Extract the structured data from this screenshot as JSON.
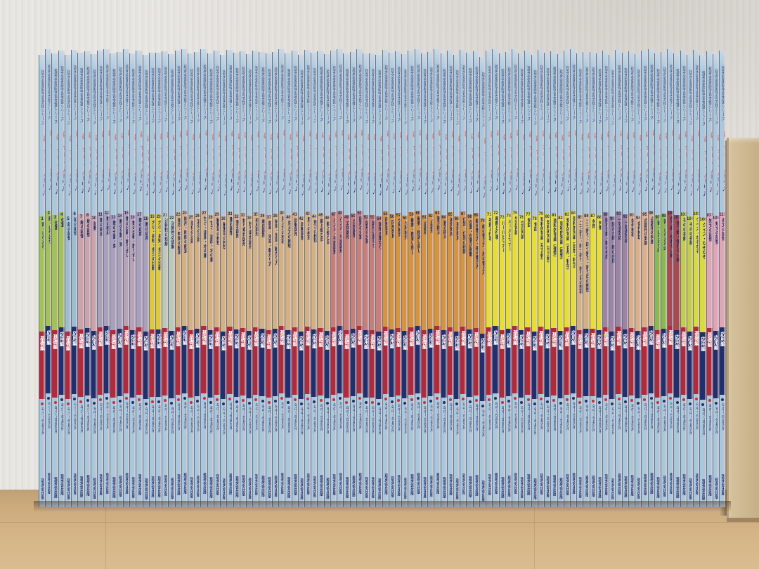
{
  "scene": {
    "wall_color": "#e6e4e0",
    "floor_color": "#cfae80",
    "box_color": "#d0bc95"
  },
  "spine": {
    "series_label": "理英会家庭学習支援シリーズ",
    "logo_main": "ばっちりくん",
    "logo_sub": "ドリル",
    "publisher": "理英会出版",
    "base_color": "#a9c8dc",
    "logo_red": "#c4232b",
    "logo_navy": "#28337a",
    "title_text_color": "#232b60"
  },
  "edition_labels": {
    "kiso": "基礎編",
    "oyo": "応用編"
  },
  "edition_colors": {
    "kiso": "#b12a3c",
    "oyo": "#20306e"
  },
  "dot_colors": {
    "kiso": "#c23040",
    "oyo": "#20306e"
  },
  "audience_labels": {
    "sho": "年少～年長児用",
    "chu": "年中～年長児用"
  },
  "section_colors": {
    "green": "#a2c258",
    "blue": "#9cbed1",
    "pink": "#cba3ab",
    "lavender": "#a7a1bb",
    "pinklav": "#b7a3b7",
    "yellow": "#ddc93c",
    "palegreen": "#bac9b8",
    "tan": "#d2b183",
    "rose": "#c5807a",
    "orange": "#d59440",
    "byellow": "#e4de35",
    "mauve": "#9a86a4",
    "peach": "#d7af88",
    "green2": "#8aba4d",
    "maroon": "#a74a52",
    "ygreen": "#c2ce4a",
    "ygreen2": "#d7db3d",
    "pink2": "#dfa7b5"
  },
  "volumes": [
    [
      1,
      "音・しりとり",
      "green",
      "kiso",
      "sho"
    ],
    [
      2,
      "音・しりとり",
      "green",
      "oyo",
      "sho"
    ],
    [
      3,
      "位置",
      "green",
      "kiso",
      "sho"
    ],
    [
      4,
      "位置",
      "green",
      "oyo",
      "sho"
    ],
    [
      5,
      "話の記憶",
      "blue",
      "kiso",
      "sho"
    ],
    [
      6,
      "話の記憶",
      "blue",
      "oyo",
      "sho"
    ],
    [
      7,
      "絵の記憶",
      "pink",
      "kiso",
      "sho"
    ],
    [
      8,
      "絵の記憶",
      "pink",
      "oyo",
      "sho"
    ],
    [
      10,
      "計数",
      "pink",
      "oyo",
      "chu"
    ],
    [
      11,
      "数の構成",
      "lavender",
      "kiso",
      "chu"
    ],
    [
      12,
      "数の構成",
      "lavender",
      "oyo",
      "chu"
    ],
    [
      13,
      "数の分割・束",
      "lavender",
      "kiso",
      "chu"
    ],
    [
      14,
      "数の分割・束",
      "lavender",
      "oyo",
      "chu"
    ],
    [
      15,
      "数の比較・釣り合い",
      "pinklav",
      "kiso",
      "chu"
    ],
    [
      16,
      "数の比較・釣り合い",
      "pinklav",
      "oyo",
      "chu"
    ],
    [
      17,
      "数の応用",
      "lavender",
      "kiso",
      "chu"
    ],
    [
      18,
      "数の応用",
      "lavender",
      "oyo",
      "chu"
    ],
    [
      19,
      "大小・長短・多少の比較",
      "yellow",
      "kiso",
      "chu"
    ],
    [
      20,
      "大小・長短・多少の比較",
      "yellow",
      "oyo",
      "chu"
    ],
    [
      21,
      "法則性の理解",
      "palegreen",
      "kiso",
      "chu"
    ],
    [
      22,
      "法則性の理解",
      "palegreen",
      "oyo",
      "chu"
    ],
    [
      23,
      "順序・時間の経過",
      "tan",
      "kiso",
      "chu"
    ],
    [
      24,
      "順序・時間の経過",
      "tan",
      "oyo",
      "chu"
    ],
    [
      25,
      "変化の法則",
      "tan",
      "kiso",
      "chu"
    ],
    [
      26,
      "変化の法則",
      "tan",
      "oyo",
      "chu"
    ],
    [
      27,
      "甘さ・濃度・水の量",
      "tan",
      "kiso",
      "chu"
    ],
    [
      28,
      "甘さ・濃度・水の量",
      "tan",
      "oyo",
      "chu"
    ],
    [
      29,
      "観覧車の推理",
      "tan",
      "kiso",
      "chu"
    ],
    [
      30,
      "観覧車の推理",
      "tan",
      "oyo",
      "chu"
    ],
    [
      31,
      "重ね図形",
      "tan",
      "kiso",
      "chu"
    ],
    [
      32,
      "重ね図形",
      "tan",
      "oyo",
      "chu"
    ],
    [
      33,
      "折り重ね図形",
      "tan",
      "kiso",
      "chu"
    ],
    [
      34,
      "折り重ね図形",
      "tan",
      "oyo",
      "chu"
    ],
    [
      35,
      "構成図形",
      "tan",
      "kiso",
      "chu"
    ],
    [
      36,
      "構成図形",
      "tan",
      "oyo",
      "chu"
    ],
    [
      37,
      "歯車・滑車・転がり方",
      "tan",
      "kiso",
      "chu"
    ],
    [
      38,
      "歯車・滑車・転がり方",
      "tan",
      "oyo",
      "chu"
    ],
    [
      39,
      "見え方の推理",
      "tan",
      "kiso",
      "chu"
    ],
    [
      40,
      "見え方の推理",
      "tan",
      "oyo",
      "chu"
    ],
    [
      41,
      "回転図形",
      "tan",
      "kiso",
      "chu"
    ],
    [
      42,
      "回転図形",
      "tan",
      "oyo",
      "chu"
    ],
    [
      43,
      "重さの推理",
      "tan",
      "kiso",
      "chu"
    ],
    [
      44,
      "重さの推理",
      "tan",
      "oyo",
      "chu"
    ],
    [
      45,
      "線と結び目",
      "tan",
      "kiso",
      "chu"
    ],
    [
      46,
      "線と結び目",
      "tan",
      "oyo",
      "chu"
    ],
    [
      47,
      "パズル・平面図形",
      "rose",
      "kiso",
      "chu"
    ],
    [
      48,
      "パズル・平面図形",
      "rose",
      "oyo",
      "chu"
    ],
    [
      49,
      "立体図形",
      "rose",
      "kiso",
      "chu"
    ],
    [
      50,
      "立体図形",
      "rose",
      "oyo",
      "chu"
    ],
    [
      51,
      "図形の分割",
      "rose",
      "kiso",
      "chu"
    ],
    [
      52,
      "図形の分割",
      "rose",
      "oyo",
      "chu"
    ],
    [
      53,
      "図形の重なり",
      "rose",
      "kiso",
      "chu"
    ],
    [
      54,
      "図形の重なり",
      "rose",
      "oyo",
      "chu"
    ],
    [
      55,
      "同形発見",
      "orange",
      "kiso",
      "chu"
    ],
    [
      56,
      "同形発見",
      "orange",
      "oyo",
      "chu"
    ],
    [
      57,
      "欠所補完",
      "orange",
      "kiso",
      "chu"
    ],
    [
      58,
      "欠所補完",
      "orange",
      "oyo",
      "chu"
    ],
    [
      59,
      "観察・間違い探し",
      "orange",
      "kiso",
      "chu"
    ],
    [
      60,
      "観察・間違い探し",
      "orange",
      "oyo",
      "chu"
    ],
    [
      61,
      "点図形",
      "orange",
      "kiso",
      "chu"
    ],
    [
      62,
      "点図形",
      "orange",
      "oyo",
      "chu"
    ],
    [
      63,
      "置き換え",
      "orange",
      "kiso",
      "chu"
    ],
    [
      64,
      "置き換え",
      "orange",
      "oyo",
      "chu"
    ],
    [
      65,
      "系列発見",
      "orange",
      "kiso",
      "chu"
    ],
    [
      66,
      "系列発見",
      "orange",
      "oyo",
      "chu"
    ],
    [
      67,
      "位置・位置の移動",
      "orange",
      "kiso",
      "chu"
    ],
    [
      68,
      "位置・位置の移動",
      "orange",
      "oyo",
      "chu"
    ],
    [
      69,
      "線の書き方・形の書き方",
      "orange",
      "kiso",
      "chu"
    ],
    [
      70,
      "線の書き方・形の書き方",
      "orange",
      "oyo",
      "chu"
    ],
    [
      71,
      "季節と行事",
      "byellow",
      "kiso",
      "chu"
    ],
    [
      72,
      "季節と行事",
      "byellow",
      "oyo",
      "chu"
    ],
    [
      73,
      "ルールとマナー",
      "byellow",
      "kiso",
      "chu"
    ],
    [
      74,
      "ルールとマナー",
      "byellow",
      "oyo",
      "chu"
    ],
    [
      75,
      "生活常識",
      "byellow",
      "kiso",
      "chu"
    ],
    [
      76,
      "生活常識",
      "byellow",
      "oyo",
      "chu"
    ],
    [
      77,
      "昔話",
      "byellow",
      "kiso",
      "chu"
    ],
    [
      78,
      "昔話",
      "byellow",
      "oyo",
      "chu"
    ],
    [
      79,
      "理科的常識〔生き物〕",
      "byellow",
      "kiso",
      "chu"
    ],
    [
      80,
      "理科的常識〔生き物〕",
      "byellow",
      "oyo",
      "chu"
    ],
    [
      81,
      "理科的常識〔植物〕",
      "byellow",
      "kiso",
      "chu"
    ],
    [
      82,
      "理科的常識〔植物〕",
      "byellow",
      "oyo",
      "chu"
    ],
    [
      83,
      "理科的常識〔自然・科学〕",
      "byellow",
      "kiso",
      "chu"
    ],
    [
      84,
      "理科的常識〔自然・科学〕",
      "byellow",
      "oyo",
      "chu"
    ],
    [
      85,
      "二つ折り・四つ折り・折り目の推理",
      "tan",
      "kiso",
      "chu"
    ],
    [
      86,
      "二つ折り・四つ折り・折り目の推理",
      "tan",
      "oyo",
      "chu"
    ],
    [
      87,
      "仲間",
      "byellow",
      "kiso",
      "chu"
    ],
    [
      88,
      "仲間",
      "byellow",
      "oyo",
      "chu"
    ],
    [
      89,
      "隠れた数・数の合成",
      "mauve",
      "kiso",
      "chu"
    ],
    [
      90,
      "隠れた数・数の合成",
      "mauve",
      "oyo",
      "chu"
    ],
    [
      91,
      "一対多対応",
      "mauve",
      "kiso",
      "chu"
    ],
    [
      92,
      "一対多対応",
      "mauve",
      "oyo",
      "chu"
    ],
    [
      93,
      "条件推理",
      "peach",
      "kiso",
      "chu"
    ],
    [
      94,
      "条件推理",
      "peach",
      "oyo",
      "chu"
    ],
    [
      95,
      "点図形の発展",
      "peach",
      "kiso",
      "chu"
    ],
    [
      96,
      "点図形の発展",
      "peach",
      "oyo",
      "chu"
    ],
    [
      97,
      "音・しりとり2",
      "green2",
      "kiso",
      "chu"
    ],
    [
      98,
      "音・しりとり2",
      "green2",
      "oyo",
      "chu"
    ],
    [
      101,
      "使う絵・使わない絵",
      "maroon",
      "kiso",
      "chu"
    ],
    [
      102,
      "使う絵・使わない絵",
      "maroon",
      "oyo",
      "chu"
    ],
    [
      103,
      "ものの名前",
      "ygreen",
      "kiso",
      "chu"
    ],
    [
      104,
      "ものの名前",
      "ygreen",
      "oyo",
      "chu"
    ],
    [
      105,
      "クイズ・なぞなぞ",
      "ygreen2",
      "kiso",
      "chu"
    ],
    [
      106,
      "クイズ・なぞなぞ",
      "ygreen2",
      "oyo",
      "chu"
    ],
    [
      107,
      "短文の記憶",
      "pink2",
      "kiso",
      "chu"
    ],
    [
      108,
      "短文の記憶",
      "pink2",
      "oyo",
      "chu"
    ],
    [
      110,
      "長文の記憶",
      "pink2",
      "oyo",
      "chu"
    ]
  ]
}
